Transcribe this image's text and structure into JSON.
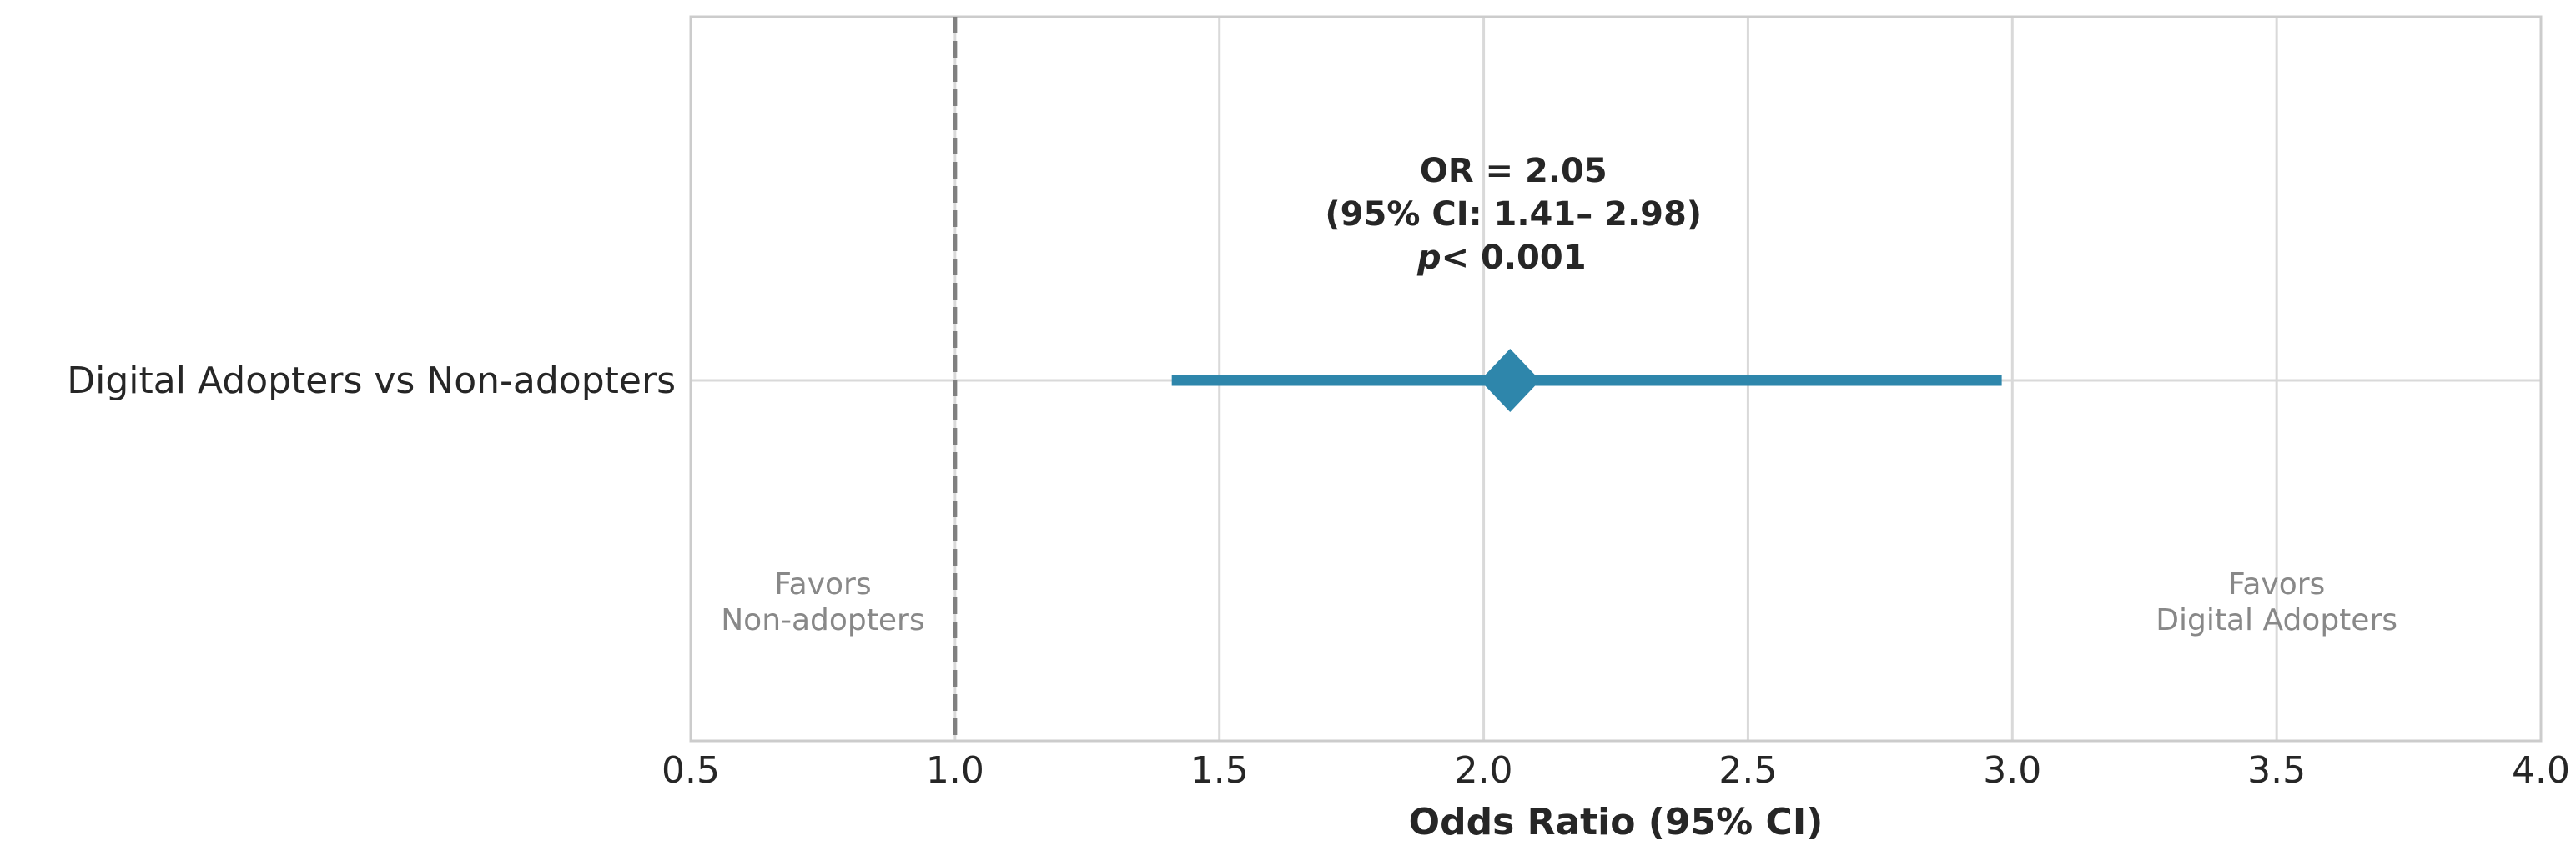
{
  "chart_data": {
    "type": "scatter",
    "xlabel": "Odds Ratio (95% CI)",
    "xlim": [
      0.5,
      4.0
    ],
    "xticks": [
      "0.5",
      "1.0",
      "1.5",
      "2.0",
      "2.5",
      "3.0",
      "3.5",
      "4.0"
    ],
    "grid": true,
    "reference_line": 1.0,
    "categories": [
      "Digital Adopters vs Non-adopters"
    ],
    "estimate": {
      "or": 2.05,
      "ci_low": 1.41,
      "ci_high": 2.98
    },
    "annotation": {
      "line1": "OR = 2.05",
      "line2": "(95% CI: 1.41– 2.98)",
      "p_symbol": "p",
      "p_text": "< 0.001"
    },
    "left_note": {
      "line1": "Favors",
      "line2": "Non-adopters"
    },
    "right_note": {
      "line1": "Favors",
      "line2": "Digital Adopters"
    },
    "colors": {
      "marker": "#2e86ab",
      "grid": "#d9d9d9",
      "frame": "#cccccc",
      "refline": "#808080"
    }
  }
}
